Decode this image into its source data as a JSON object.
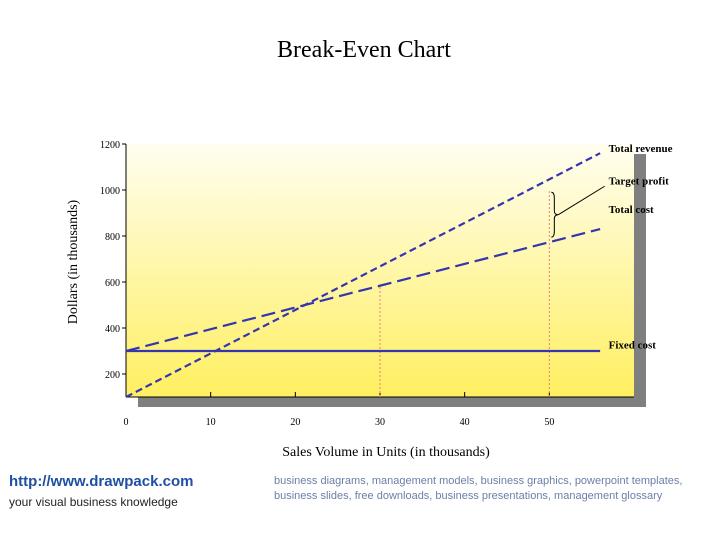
{
  "footer": {
    "url": "http://www.drawpack.com",
    "tagline": "your visual business knowledge",
    "keywords": "business diagrams, management models, business graphics, powerpoint templates, business slides, free downloads, business presentations, management glossary"
  },
  "colors": {
    "line": "#3535b0",
    "guide": "#e08080",
    "plot_top": "#fffef0",
    "plot_bottom": "#ffef60",
    "shadow": "#7f7f7f"
  },
  "chart_data": {
    "type": "line",
    "title": "Break-Even Chart",
    "xlabel": "Sales Volume in Units (in thousands)",
    "ylabel": "Dollars (in thousands)",
    "xlim": [
      0,
      60
    ],
    "ylim": [
      100,
      1200
    ],
    "x_ticks": [
      0,
      10,
      20,
      30,
      40,
      50
    ],
    "y_ticks": [
      200,
      400,
      600,
      800,
      1000,
      1200
    ],
    "x_tick_labels": [
      "0",
      "10",
      "20",
      "30",
      "40",
      "50"
    ],
    "y_tick_labels": [
      "200",
      "400",
      "600",
      "800",
      "1000",
      "1200"
    ],
    "grid": false,
    "series": [
      {
        "name": "Total revenue",
        "style": "dashed-short",
        "points": [
          [
            0,
            100
          ],
          [
            56,
            1160
          ]
        ]
      },
      {
        "name": "Total cost",
        "style": "dashed-long",
        "points": [
          [
            0,
            300
          ],
          [
            56,
            830
          ]
        ]
      },
      {
        "name": "Fixed cost",
        "style": "solid",
        "points": [
          [
            0,
            300
          ],
          [
            56,
            300
          ]
        ]
      }
    ],
    "guides": [
      {
        "x": 30,
        "y_from": 100,
        "y_to": 590
      },
      {
        "x": 50,
        "y_from": 100,
        "y_to": 1000
      }
    ],
    "annotations": [
      {
        "text": "Total revenue",
        "x": 57,
        "y": 1165
      },
      {
        "text": "Target profit",
        "x": 57,
        "y": 1025
      },
      {
        "text": "Total cost",
        "x": 57,
        "y": 900
      },
      {
        "text": "Fixed cost",
        "x": 57,
        "y": 310
      }
    ],
    "brace": {
      "x": 50,
      "y_from": 795,
      "y_to": 990
    }
  }
}
